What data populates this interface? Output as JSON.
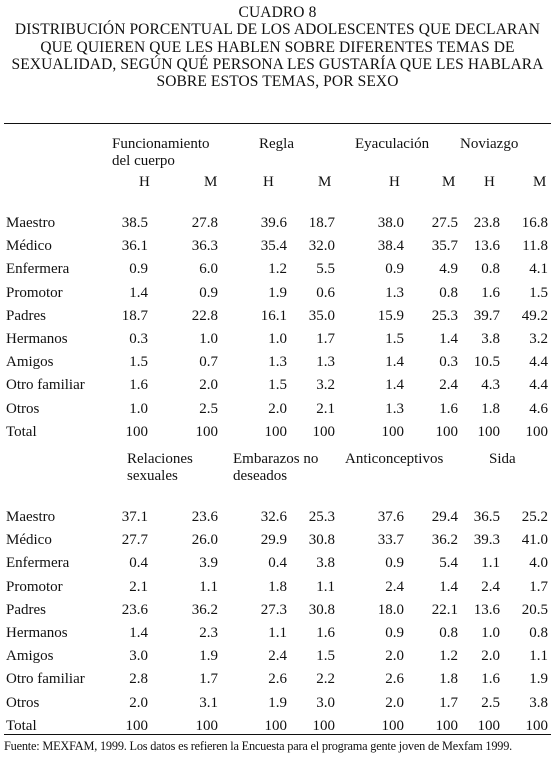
{
  "cuadro": "CUADRO 8",
  "title_lines": [
    "DISTRIBUCIÓN PORCENTUAL DE LOS ADOLESCENTES QUE DECLARAN",
    "QUE QUIEREN QUE LES HABLEN SOBRE DIFERENTES TEMAS DE",
    "SEXUALIDAD, SEGÚN QUÉ PERSONA LES GUSTARÍA QUE LES HABLARA",
    "SOBRE ESTOS TEMAS, POR SEXO"
  ],
  "sex_labels": {
    "h": "H",
    "m": "M"
  },
  "sections": [
    {
      "headers": [
        [
          "Funcionamiento",
          "del cuerpo"
        ],
        [
          "Regla"
        ],
        [
          "Eyaculación"
        ],
        [
          "Noviazgo"
        ]
      ],
      "show_sex": true,
      "rows": [
        {
          "label": "Maestro",
          "values": [
            "38.5",
            "27.8",
            "39.6",
            "18.7",
            "38.0",
            "27.5",
            "23.8",
            "16.8"
          ]
        },
        {
          "label": "Médico",
          "values": [
            "36.1",
            "36.3",
            "35.4",
            "32.0",
            "38.4",
            "35.7",
            "13.6",
            "11.8"
          ]
        },
        {
          "label": "Enfermera",
          "values": [
            "0.9",
            "6.0",
            "1.2",
            "5.5",
            "0.9",
            "4.9",
            "0.8",
            "4.1"
          ]
        },
        {
          "label": "Promotor",
          "values": [
            "1.4",
            "0.9",
            "1.9",
            "0.6",
            "1.3",
            "0.8",
            "1.6",
            "1.5"
          ]
        },
        {
          "label": "Padres",
          "values": [
            "18.7",
            "22.8",
            "16.1",
            "35.0",
            "15.9",
            "25.3",
            "39.7",
            "49.2"
          ]
        },
        {
          "label": "Hermanos",
          "values": [
            "0.3",
            "1.0",
            "1.0",
            "1.7",
            "1.5",
            "1.4",
            "3.8",
            "3.2"
          ]
        },
        {
          "label": "Amigos",
          "values": [
            "1.5",
            "0.7",
            "1.3",
            "1.3",
            "1.4",
            "0.3",
            "10.5",
            "4.4"
          ]
        },
        {
          "label": "Otro familiar",
          "values": [
            "1.6",
            "2.0",
            "1.5",
            "3.2",
            "1.4",
            "2.4",
            "4.3",
            "4.4"
          ]
        },
        {
          "label": "Otros",
          "values": [
            "1.0",
            "2.5",
            "2.0",
            "2.1",
            "1.3",
            "1.6",
            "1.8",
            "4.6"
          ]
        },
        {
          "label": "Total",
          "values": [
            "100",
            "100",
            "100",
            "100",
            "100",
            "100",
            "100",
            "100"
          ]
        }
      ]
    },
    {
      "headers": [
        [
          "Relaciones",
          "sexuales"
        ],
        [
          "Embarazos no",
          "deseados"
        ],
        [
          "Anticonceptivos"
        ],
        [
          "Sida"
        ]
      ],
      "show_sex": false,
      "rows": [
        {
          "label": "Maestro",
          "values": [
            "37.1",
            "23.6",
            "32.6",
            "25.3",
            "37.6",
            "29.4",
            "36.5",
            "25.2"
          ]
        },
        {
          "label": "Médico",
          "values": [
            "27.7",
            "26.0",
            "29.9",
            "30.8",
            "33.7",
            "36.2",
            "39.3",
            "41.0"
          ]
        },
        {
          "label": "Enfermera",
          "values": [
            "0.4",
            "3.9",
            "0.4",
            "3.8",
            "0.9",
            "5.4",
            "1.1",
            "4.0"
          ]
        },
        {
          "label": "Promotor",
          "values": [
            "2.1",
            "1.1",
            "1.8",
            "1.1",
            "2.4",
            "1.4",
            "2.4",
            "1.7"
          ]
        },
        {
          "label": "Padres",
          "values": [
            "23.6",
            "36.2",
            "27.3",
            "30.8",
            "18.0",
            "22.1",
            "13.6",
            "20.5"
          ]
        },
        {
          "label": "Hermanos",
          "values": [
            "1.4",
            "2.3",
            "1.1",
            "1.6",
            "0.9",
            "0.8",
            "1.0",
            "0.8"
          ]
        },
        {
          "label": "Amigos",
          "values": [
            "3.0",
            "1.9",
            "2.4",
            "1.5",
            "2.0",
            "1.2",
            "2.0",
            "1.1"
          ]
        },
        {
          "label": "Otro familiar",
          "values": [
            "2.8",
            "1.7",
            "2.6",
            "2.2",
            "2.6",
            "1.8",
            "1.6",
            "1.9"
          ]
        },
        {
          "label": "Otros",
          "values": [
            "2.0",
            "3.1",
            "1.9",
            "3.0",
            "2.0",
            "1.7",
            "2.5",
            "3.8"
          ]
        },
        {
          "label": "Total",
          "values": [
            "100",
            "100",
            "100",
            "100",
            "100",
            "100",
            "100",
            "100"
          ]
        }
      ]
    }
  ],
  "source": "Fuente: MEXFAM, 1999. Los datos es refieren la Encuesta para el programa gente joven de Mexfam 1999."
}
